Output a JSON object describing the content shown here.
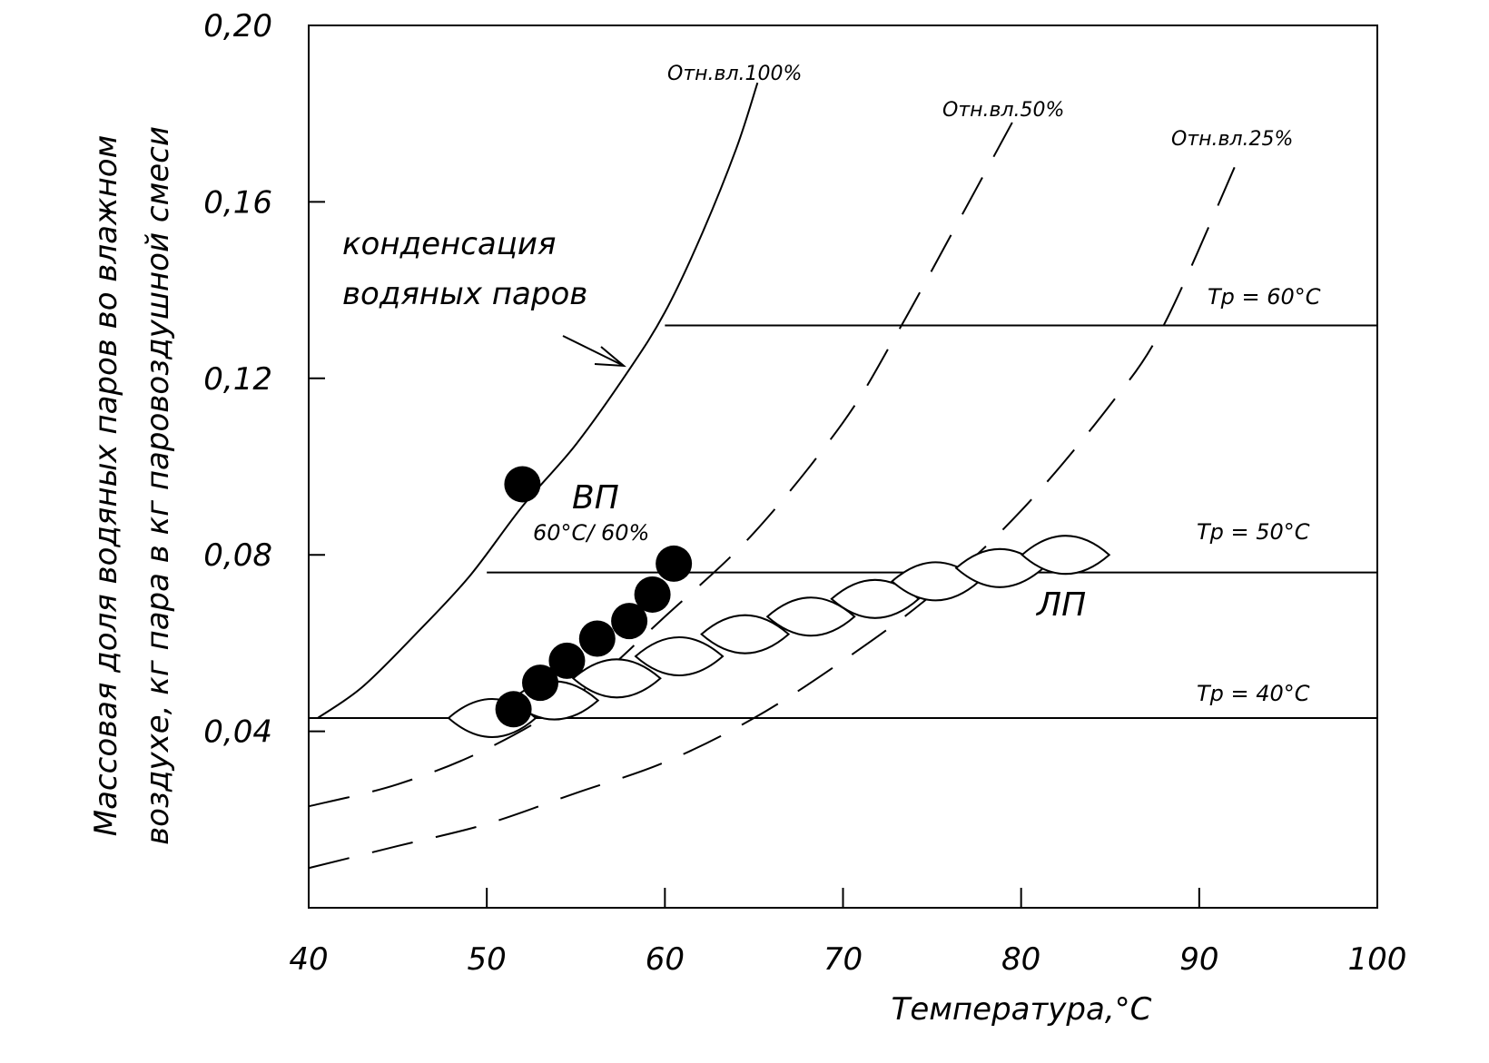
{
  "chart_data": {
    "type": "line",
    "xlabel": "Температура,°С",
    "ylabel_lines": [
      "Массовая доля водяных паров во влажном",
      "воздухе, кг пара в кг паровоздушной смеси"
    ],
    "xlim": [
      40,
      100
    ],
    "ylim": [
      0.0,
      0.2
    ],
    "x_ticks": [
      40,
      50,
      60,
      70,
      80,
      90,
      100
    ],
    "x_tick_labels": [
      "40",
      "50",
      "60",
      "70",
      "80",
      "90",
      "100"
    ],
    "y_ticks": [
      0.04,
      0.08,
      0.12,
      0.16,
      0.2
    ],
    "y_tick_labels": [
      "0,04",
      "0,08",
      "0,12",
      "0,16",
      "0,20"
    ],
    "grid": false,
    "curves": [
      {
        "label": "Отн.вл.100%",
        "style": "solid",
        "x": [
          40.5,
          43,
          46,
          49,
          52,
          55,
          58,
          60,
          62,
          64,
          65.2
        ],
        "y": [
          0.043,
          0.05,
          0.062,
          0.075,
          0.091,
          0.105,
          0.122,
          0.135,
          0.152,
          0.172,
          0.187
        ]
      },
      {
        "label": "Отн.вл.50%",
        "style": "dashed",
        "x": [
          40,
          45,
          50,
          55,
          60,
          65,
          70,
          73,
          76,
          79.5
        ],
        "y": [
          0.023,
          0.028,
          0.036,
          0.048,
          0.066,
          0.085,
          0.11,
          0.13,
          0.152,
          0.178
        ]
      },
      {
        "label": "Отн.вл.25%",
        "style": "dashed",
        "x": [
          40,
          45,
          50,
          55,
          60,
          65,
          70,
          75,
          80,
          85,
          88,
          92
        ],
        "y": [
          0.009,
          0.014,
          0.019,
          0.026,
          0.033,
          0.043,
          0.056,
          0.071,
          0.09,
          0.114,
          0.132,
          0.168
        ]
      }
    ],
    "dew_point_lines": [
      {
        "label": "Тр = 60°С",
        "y": 0.132,
        "x_start": 60,
        "x_end": 100
      },
      {
        "label": "Тр = 50°С",
        "y": 0.076,
        "x_start": 50,
        "x_end": 100
      },
      {
        "label": "Тр = 40°С",
        "y": 0.043,
        "x_start": 40,
        "x_end": 100
      }
    ],
    "series": [
      {
        "name": "ВП",
        "type": "scatter",
        "x": [
          52.0,
          51.5,
          53.0,
          54.5,
          56.2,
          58.0,
          59.3,
          60.5
        ],
        "y": [
          0.096,
          0.045,
          0.051,
          0.056,
          0.061,
          0.065,
          0.071,
          0.078
        ]
      },
      {
        "name": "ЛП",
        "type": "lens",
        "x": [
          50.3,
          53.8,
          57.3,
          60.8,
          64.5,
          68.2,
          71.8,
          75.2,
          78.8,
          82.5
        ],
        "y": [
          0.043,
          0.047,
          0.052,
          0.057,
          0.062,
          0.066,
          0.07,
          0.074,
          0.077,
          0.08
        ]
      }
    ]
  },
  "labels": {
    "rh100": "Отн.вл.100%",
    "rh50": "Отн.вл.50%",
    "rh25": "Отн.вл.25%",
    "condensation_line1": "конденсация",
    "condensation_line2": "водяных паров",
    "vp": "ВП",
    "vp_condition": "60°С/ 60%",
    "lp": "ЛП",
    "tr60": "Тр = 60°С",
    "tr50": "Тр = 50°С",
    "tr40": "Тр = 40°С"
  }
}
